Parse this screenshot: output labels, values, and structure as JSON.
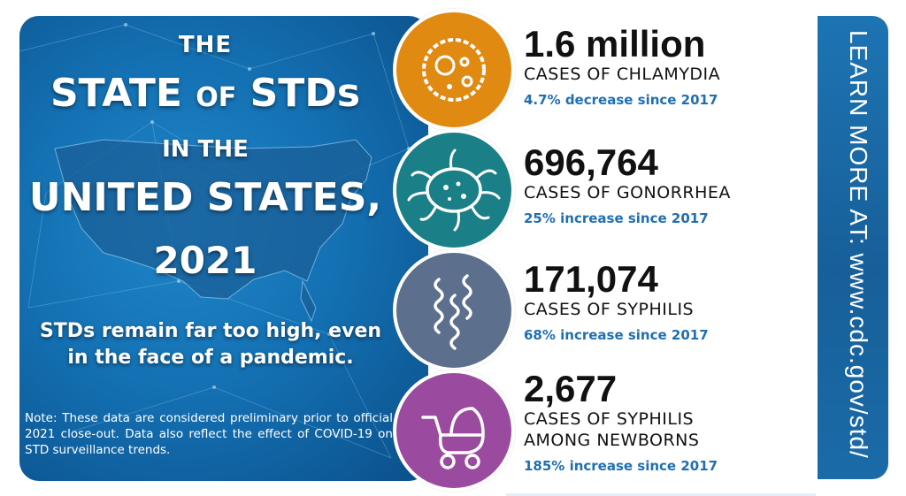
{
  "title": {
    "line1": "THE",
    "line2a": "STATE",
    "line2b": "OF",
    "line2c": "STDs",
    "line3": "IN THE",
    "line4": "UNITED STATES,",
    "line5": "2021"
  },
  "tagline": "STDs remain far too high, even in the face of a pandemic.",
  "note": "Note: These data are considered preliminary prior to official 2021 close-out. Data also reflect the effect of COVID-19 on STD surveillance trends.",
  "stats": [
    {
      "number": "1.6 million",
      "label": "CASES OF CHLAMYDIA",
      "label2": "",
      "change": "4.7% decrease since 2017",
      "color": "#e08a12",
      "icon": "chlamydia-cell-icon"
    },
    {
      "number": "696,764",
      "label": "CASES OF GONORRHEA",
      "label2": "",
      "change": "25% increase since 2017",
      "color": "#1a7f86",
      "icon": "gonorrhea-bacteria-icon"
    },
    {
      "number": "171,074",
      "label": "CASES OF SYPHILIS",
      "label2": "",
      "change": "68% increase since 2017",
      "color": "#5c6f8c",
      "icon": "syphilis-spirochete-icon"
    },
    {
      "number": "2,677",
      "label": "CASES OF SYPHILIS",
      "label2": "AMONG NEWBORNS",
      "change": "185% increase since 2017",
      "color": "#9a4b9f",
      "icon": "baby-stroller-icon"
    }
  ],
  "learn_more": "LEARN MORE AT:  www.cdc.gov/std/"
}
